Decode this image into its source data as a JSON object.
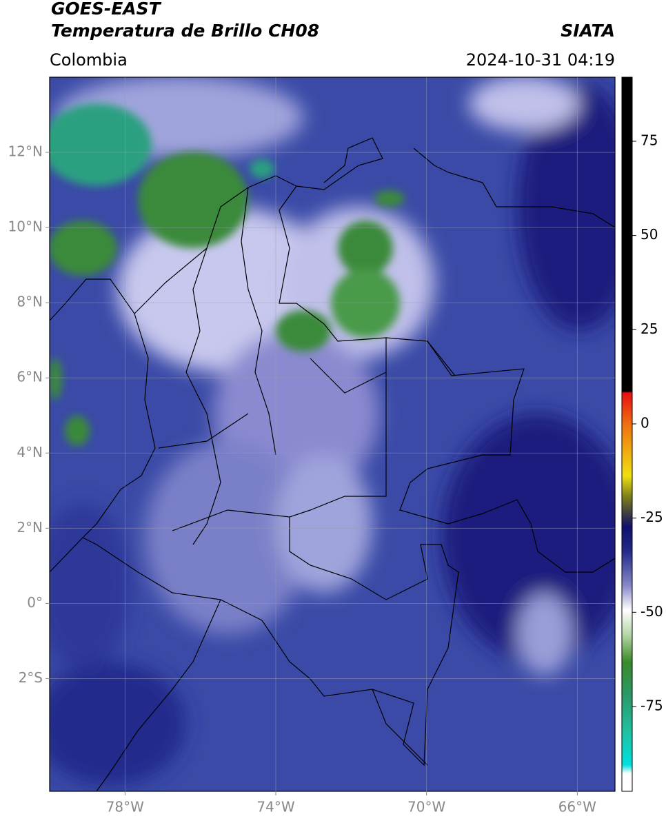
{
  "header": {
    "title": "GOES-EAST",
    "subtitle": "Temperatura de Brillo CH08",
    "brand": "SIATA",
    "region": "Colombia",
    "datetime": "2024-10-31 04:19"
  },
  "map": {
    "xlim": [
      -80,
      -65
    ],
    "ylim": [
      -5,
      14
    ],
    "xticks": [
      {
        "value": -78,
        "label": "78°W"
      },
      {
        "value": -74,
        "label": "74°W"
      },
      {
        "value": -70,
        "label": "70°W"
      },
      {
        "value": -66,
        "label": "66°W"
      }
    ],
    "yticks": [
      {
        "value": 12,
        "label": "12°N"
      },
      {
        "value": 10,
        "label": "10°N"
      },
      {
        "value": 8,
        "label": "8°N"
      },
      {
        "value": 6,
        "label": "6°N"
      },
      {
        "value": 4,
        "label": "4°N"
      },
      {
        "value": 2,
        "label": "2°N"
      },
      {
        "value": 0,
        "label": "0°"
      },
      {
        "value": -2,
        "label": "2°S"
      }
    ],
    "grid": true
  },
  "colorbar": {
    "lim": [
      -97.5,
      92
    ],
    "ticks": [
      75,
      50,
      25,
      0,
      -25,
      -50,
      -75
    ]
  }
}
